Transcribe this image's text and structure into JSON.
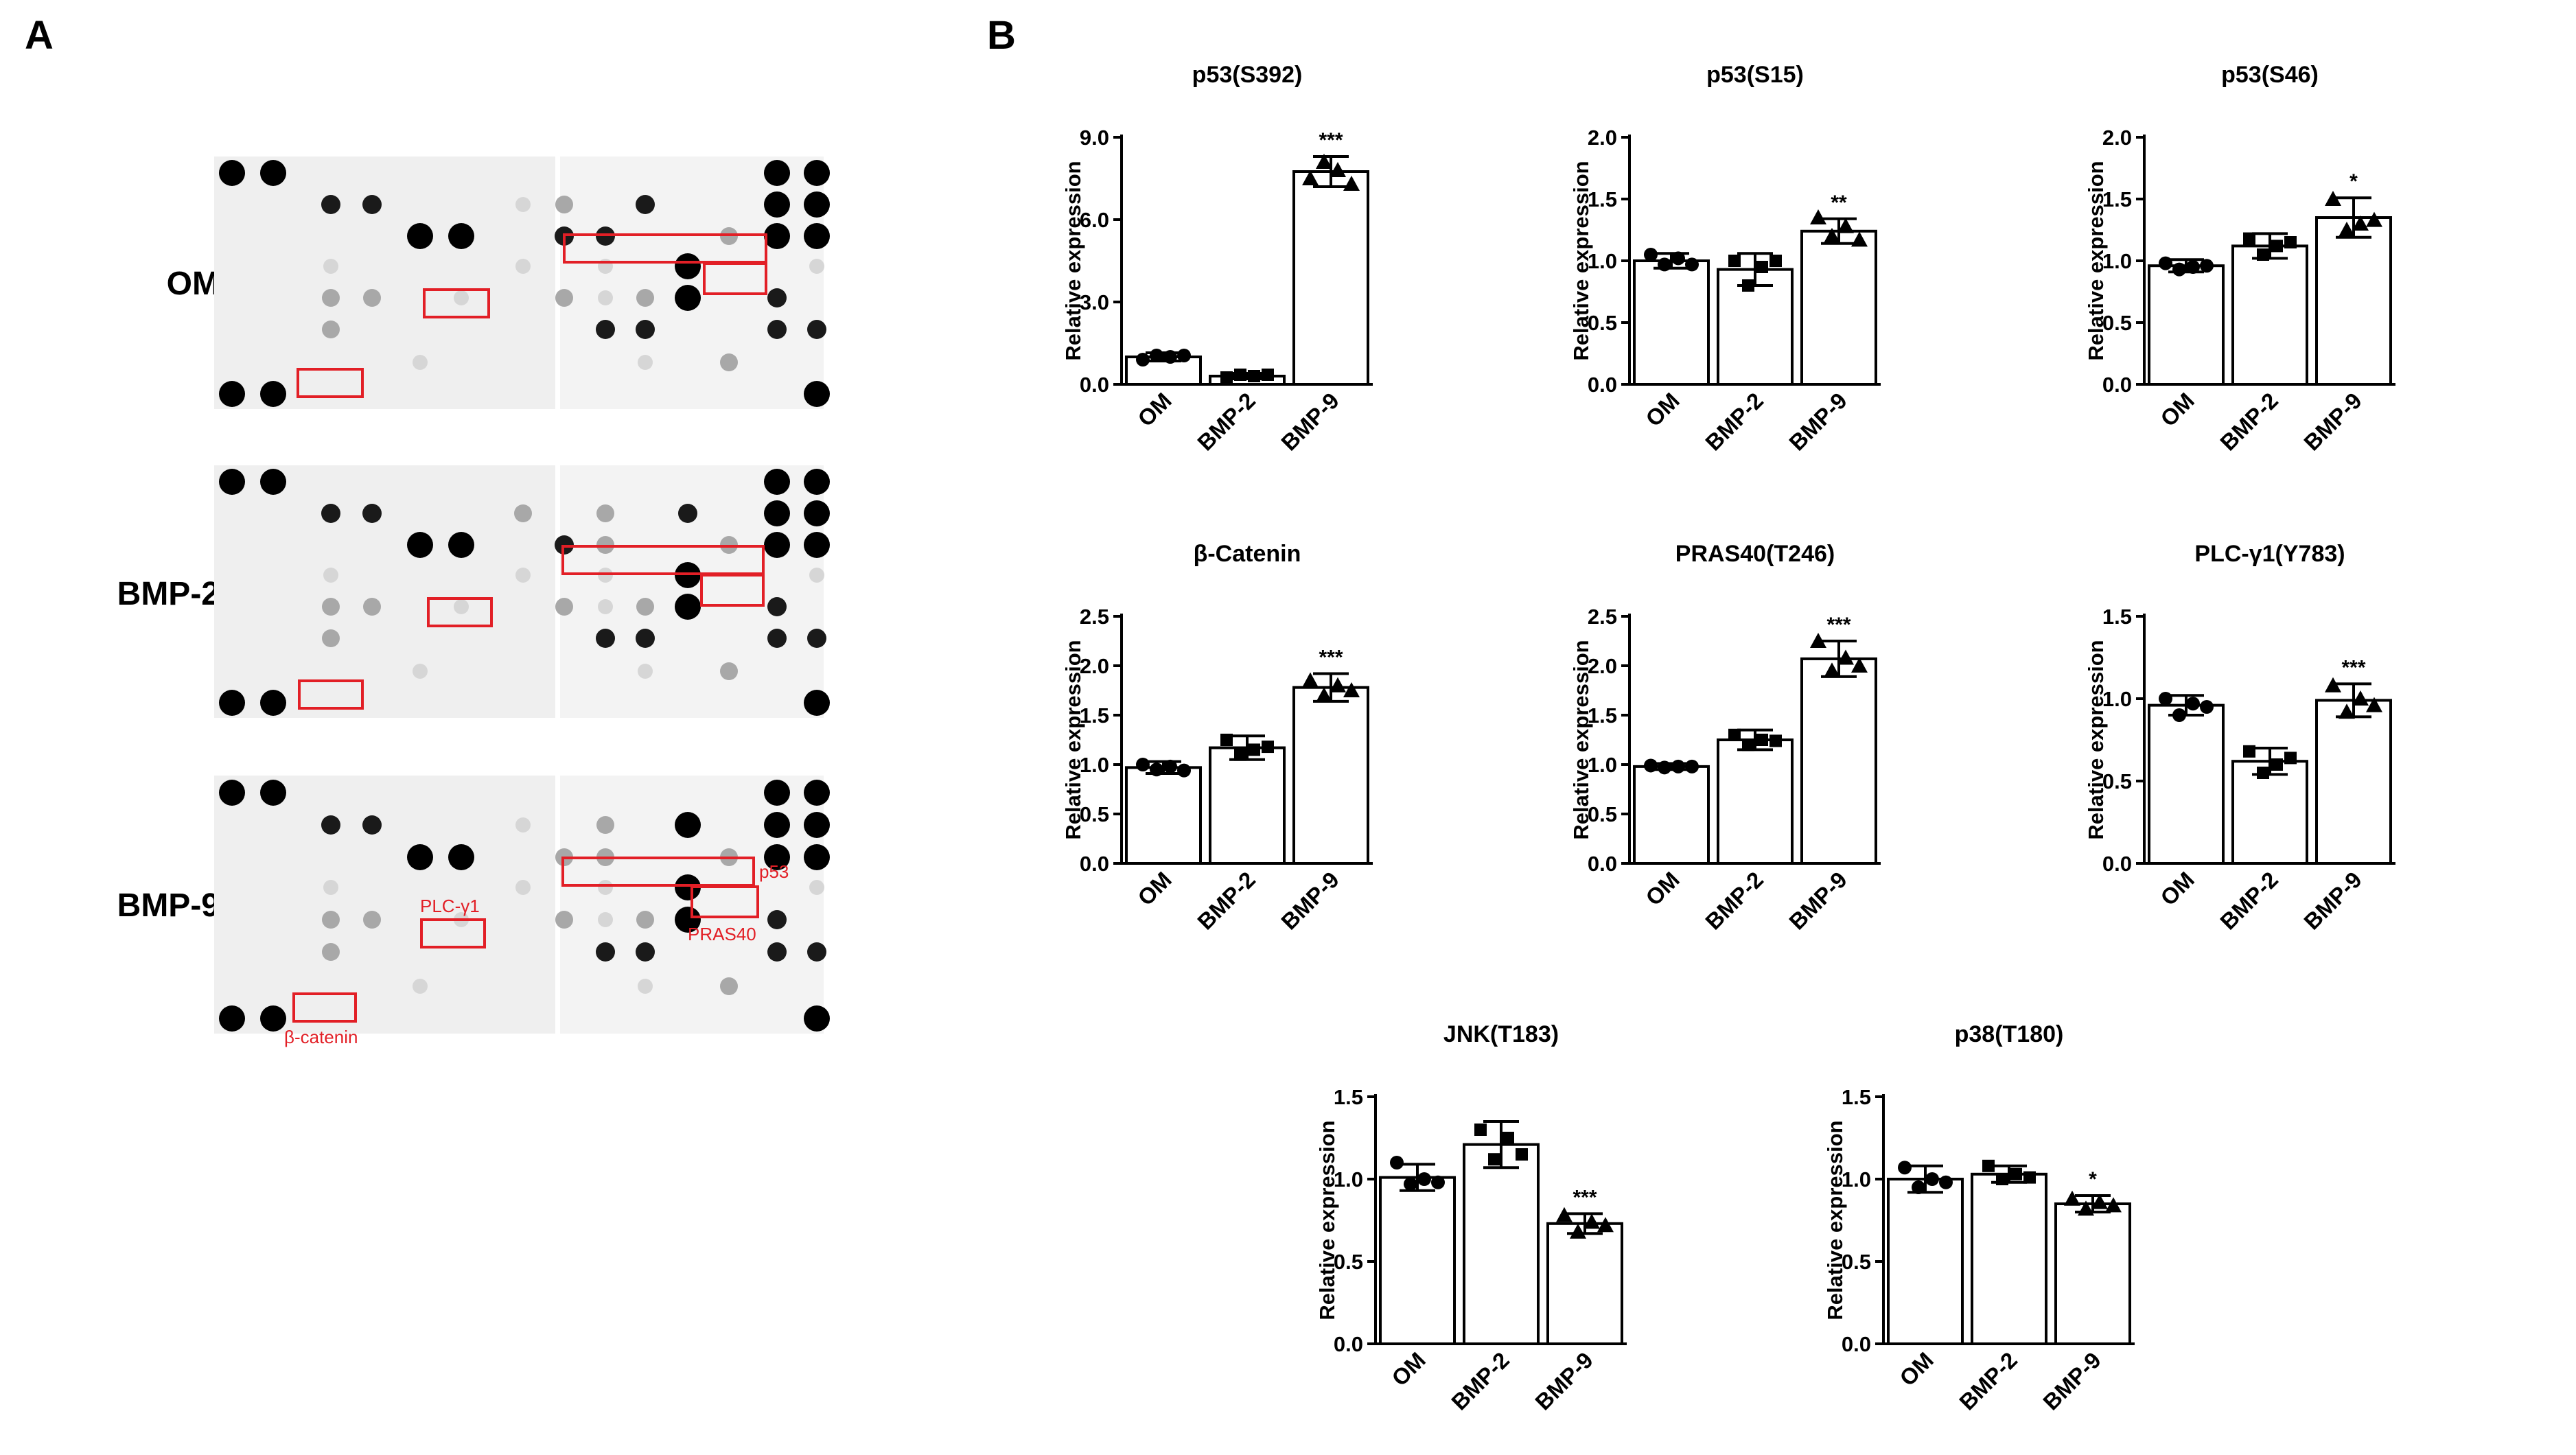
{
  "panel_labels": {
    "a": "A",
    "b": "B"
  },
  "blots": {
    "rows": [
      {
        "label": "OM"
      },
      {
        "label": "BMP-2"
      },
      {
        "label": "BMP-9"
      }
    ],
    "annotations": {
      "p53": "p53",
      "plc": "PLC-γ1",
      "pras40": "PRAS40",
      "catenin": "β-catenin"
    }
  },
  "colors": {
    "box": "#e21f26",
    "bar": "#ffffff",
    "ink": "#000000"
  },
  "chart_data": [
    {
      "type": "bar",
      "title": "p53(S392)",
      "ylabel": "Relative expression",
      "categories": [
        "OM",
        "BMP-2",
        "BMP-9"
      ],
      "values": [
        1.0,
        0.3,
        7.75
      ],
      "errors": [
        0.15,
        0.1,
        0.55
      ],
      "points": [
        [
          0.9,
          1.05,
          1.0,
          1.05
        ],
        [
          0.25,
          0.35,
          0.3,
          0.35
        ],
        [
          7.5,
          8.1,
          7.8,
          7.3
        ]
      ],
      "markers": [
        "circle",
        "square",
        "triangle"
      ],
      "ylim": [
        0,
        9.0
      ],
      "yticks": [
        "0.0",
        "3.0",
        "6.0",
        "9.0"
      ],
      "significance": [
        "",
        "",
        "***"
      ]
    },
    {
      "type": "bar",
      "title": "p53(S15)",
      "ylabel": "Relative expression",
      "categories": [
        "OM",
        "BMP-2",
        "BMP-9"
      ],
      "values": [
        1.0,
        0.93,
        1.24
      ],
      "errors": [
        0.06,
        0.13,
        0.1
      ],
      "points": [
        [
          1.05,
          0.97,
          1.02,
          0.97
        ],
        [
          1.0,
          0.8,
          0.95,
          1.0
        ],
        [
          1.35,
          1.2,
          1.28,
          1.17
        ]
      ],
      "markers": [
        "circle",
        "square",
        "triangle"
      ],
      "ylim": [
        0,
        2.0
      ],
      "yticks": [
        "0.0",
        "0.5",
        "1.0",
        "1.5",
        "2.0"
      ],
      "significance": [
        "",
        "",
        "**"
      ]
    },
    {
      "type": "bar",
      "title": "p53(S46)",
      "ylabel": "Relative expression",
      "categories": [
        "OM",
        "BMP-2",
        "BMP-9"
      ],
      "values": [
        0.96,
        1.12,
        1.35
      ],
      "errors": [
        0.05,
        0.1,
        0.16
      ],
      "points": [
        [
          0.98,
          0.93,
          0.95,
          0.96
        ],
        [
          1.18,
          1.05,
          1.12,
          1.15
        ],
        [
          1.5,
          1.25,
          1.3,
          1.33
        ]
      ],
      "markers": [
        "circle",
        "square",
        "triangle"
      ],
      "ylim": [
        0,
        2.0
      ],
      "yticks": [
        "0.0",
        "0.5",
        "1.0",
        "1.5",
        "2.0"
      ],
      "significance": [
        "",
        "",
        "*"
      ]
    },
    {
      "type": "bar",
      "title": "β-Catenin",
      "ylabel": "Relative expression",
      "categories": [
        "OM",
        "BMP-2",
        "BMP-9"
      ],
      "values": [
        0.97,
        1.17,
        1.78
      ],
      "errors": [
        0.06,
        0.12,
        0.14
      ],
      "points": [
        [
          1.0,
          0.95,
          0.98,
          0.94
        ],
        [
          1.25,
          1.1,
          1.15,
          1.18
        ],
        [
          1.85,
          1.7,
          1.8,
          1.75
        ]
      ],
      "markers": [
        "circle",
        "square",
        "triangle"
      ],
      "ylim": [
        0,
        2.5
      ],
      "yticks": [
        "0.0",
        "0.5",
        "1.0",
        "1.5",
        "2.0",
        "2.5"
      ],
      "significance": [
        "",
        "",
        "***"
      ]
    },
    {
      "type": "bar",
      "title": "PRAS40(T246)",
      "ylabel": "Relative expression",
      "categories": [
        "OM",
        "BMP-2",
        "BMP-9"
      ],
      "values": [
        0.98,
        1.25,
        2.07
      ],
      "errors": [
        0.03,
        0.1,
        0.18
      ],
      "points": [
        [
          0.99,
          0.97,
          0.98,
          0.98
        ],
        [
          1.3,
          1.2,
          1.25,
          1.24
        ],
        [
          2.25,
          1.95,
          2.08,
          2.0
        ]
      ],
      "markers": [
        "circle",
        "square",
        "triangle"
      ],
      "ylim": [
        0,
        2.5
      ],
      "yticks": [
        "0.0",
        "0.5",
        "1.0",
        "1.5",
        "2.0",
        "2.5"
      ],
      "significance": [
        "",
        "",
        "***"
      ]
    },
    {
      "type": "bar",
      "title": "PLC-γ1(Y783)",
      "ylabel": "Relative expression",
      "categories": [
        "OM",
        "BMP-2",
        "BMP-9"
      ],
      "values": [
        0.96,
        0.62,
        0.99
      ],
      "errors": [
        0.06,
        0.08,
        0.1
      ],
      "points": [
        [
          1.0,
          0.9,
          0.97,
          0.95
        ],
        [
          0.68,
          0.55,
          0.6,
          0.64
        ],
        [
          1.08,
          0.92,
          1.0,
          0.96
        ]
      ],
      "markers": [
        "circle",
        "square",
        "triangle"
      ],
      "ylim": [
        0,
        1.5
      ],
      "yticks": [
        "0.0",
        "0.5",
        "1.0",
        "1.5"
      ],
      "significance": [
        "",
        "",
        "***"
      ]
    },
    {
      "type": "bar",
      "title": "JNK(T183)",
      "ylabel": "Relative expression",
      "categories": [
        "OM",
        "BMP-2",
        "BMP-9"
      ],
      "values": [
        1.01,
        1.21,
        0.73
      ],
      "errors": [
        0.08,
        0.14,
        0.06
      ],
      "points": [
        [
          1.1,
          0.97,
          1.0,
          0.98
        ],
        [
          1.3,
          1.12,
          1.25,
          1.15
        ],
        [
          0.78,
          0.68,
          0.74,
          0.72
        ]
      ],
      "markers": [
        "circle",
        "square",
        "triangle"
      ],
      "ylim": [
        0,
        1.5
      ],
      "yticks": [
        "0.0",
        "0.5",
        "1.0",
        "1.5"
      ],
      "significance": [
        "",
        "",
        "***"
      ]
    },
    {
      "type": "bar",
      "title": "p38(T180)",
      "ylabel": "Relative expression",
      "categories": [
        "OM",
        "BMP-2",
        "BMP-9"
      ],
      "values": [
        1.0,
        1.03,
        0.85
      ],
      "errors": [
        0.08,
        0.05,
        0.05
      ],
      "points": [
        [
          1.07,
          0.95,
          1.0,
          0.98
        ],
        [
          1.08,
          1.0,
          1.03,
          1.01
        ],
        [
          0.88,
          0.82,
          0.86,
          0.84
        ]
      ],
      "markers": [
        "circle",
        "square",
        "triangle"
      ],
      "ylim": [
        0,
        1.5
      ],
      "yticks": [
        "0.0",
        "0.5",
        "1.0",
        "1.5"
      ],
      "significance": [
        "",
        "",
        "*"
      ]
    }
  ]
}
